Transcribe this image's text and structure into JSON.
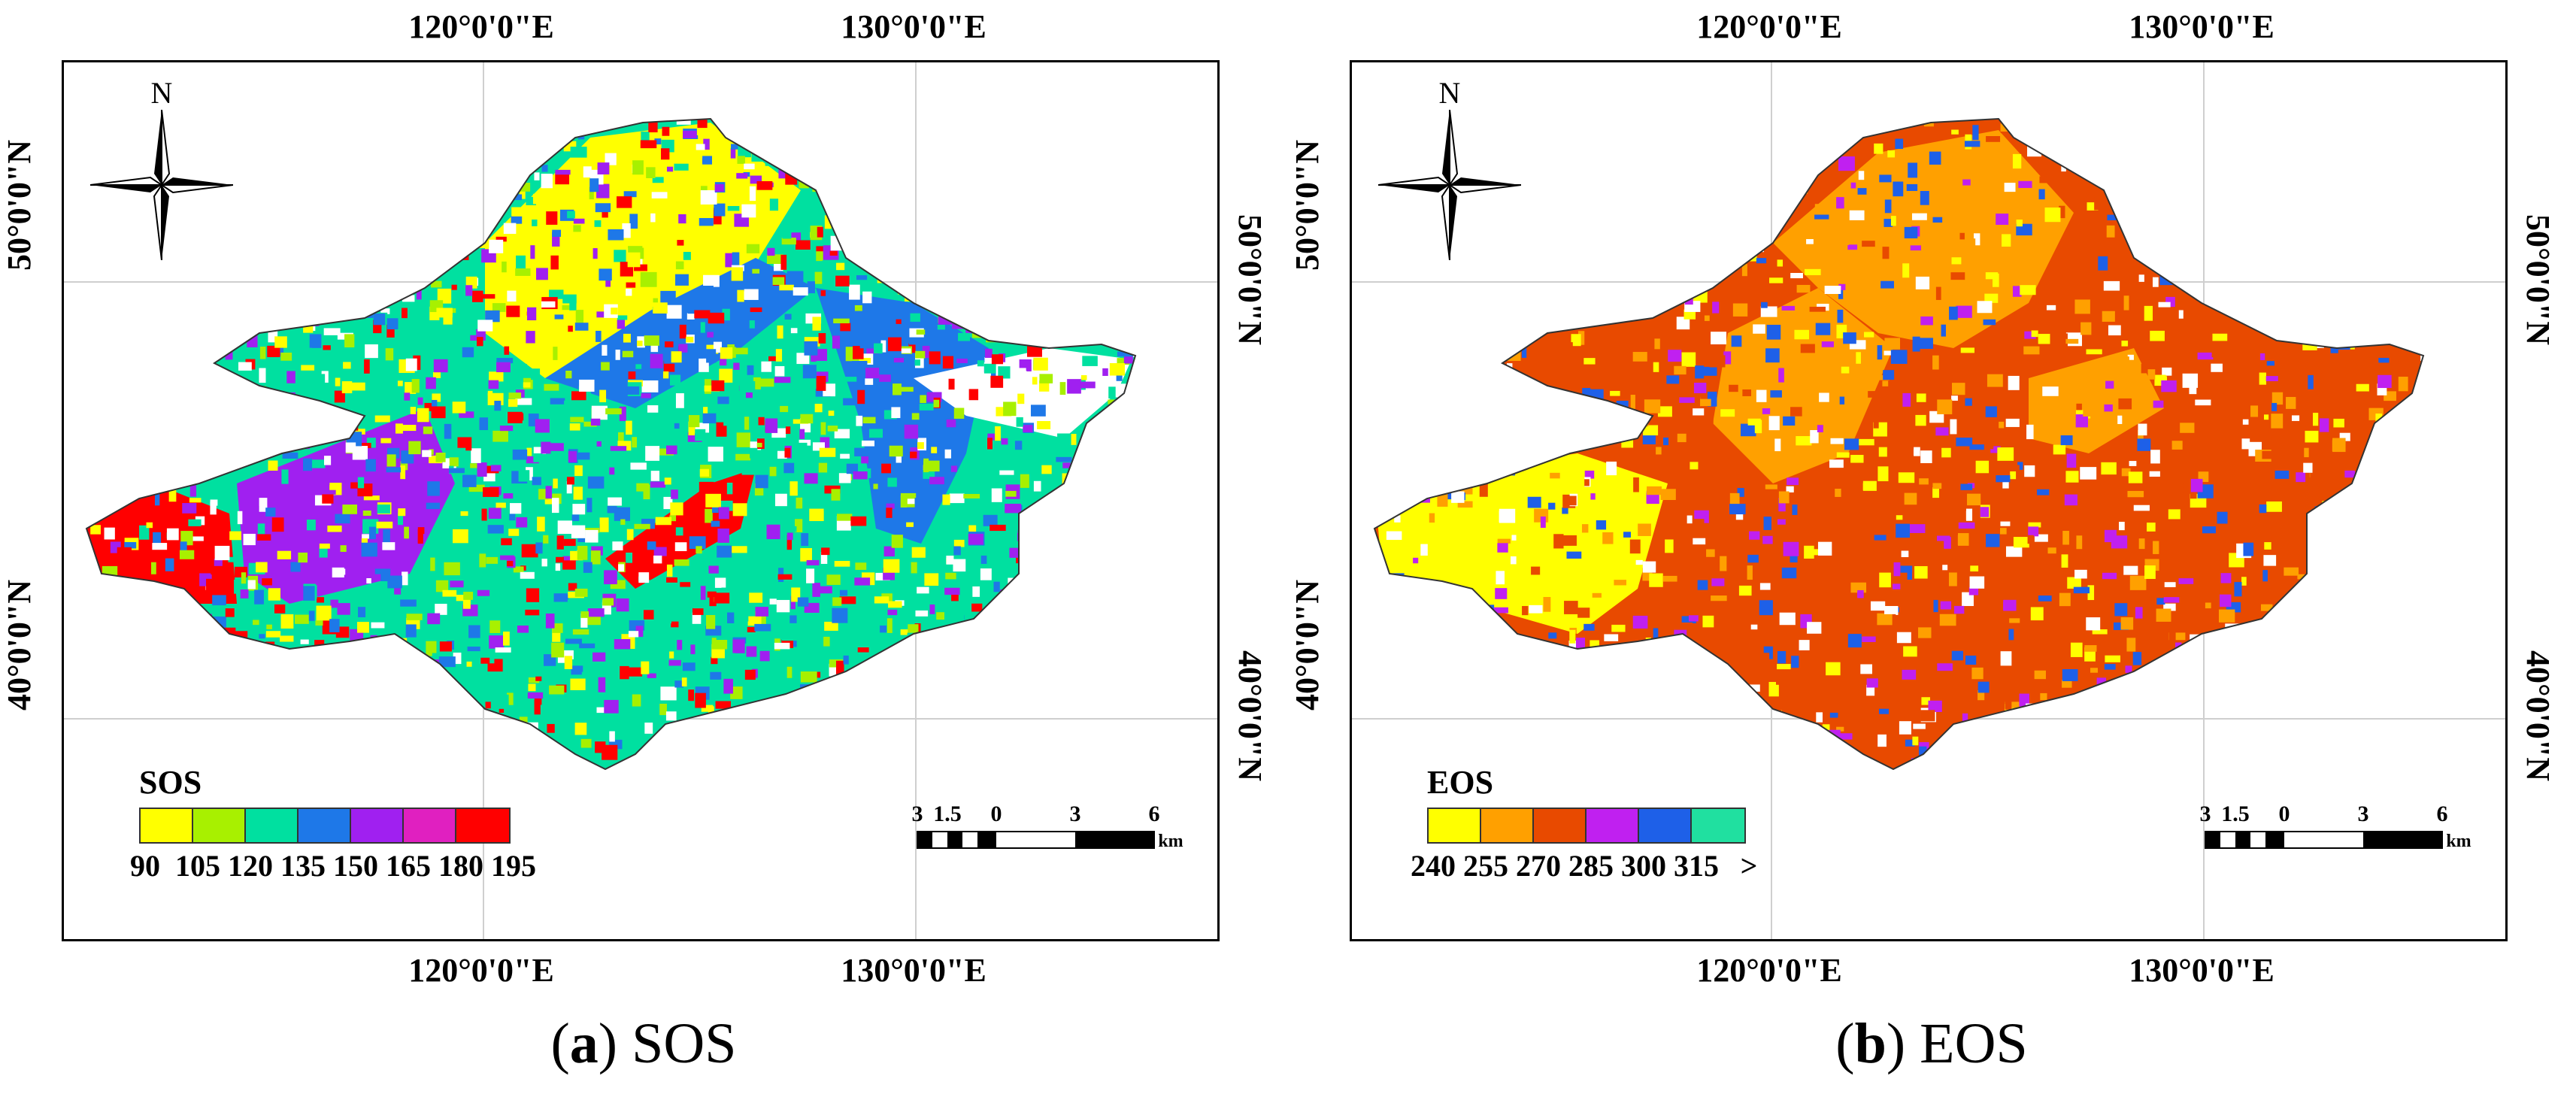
{
  "panels": [
    {
      "id": "a",
      "caption_letter": "a",
      "caption_text": " SOS",
      "axes": {
        "top_ticks": [
          "120°0'0\"E",
          "130°0'0\"E"
        ],
        "bottom_ticks": [
          "120°0'0\"E",
          "130°0'0\"E"
        ],
        "left_ticks": [
          "50°0'0\"N",
          "40°0'0\"N"
        ],
        "right_ticks": [
          "50°0'0\"N",
          "40°0'0\"N"
        ]
      },
      "north_label": "N",
      "legend": {
        "title": "SOS",
        "colors": [
          "#ffff00",
          "#a8f000",
          "#00e0a0",
          "#1e78e8",
          "#a020f0",
          "#e020c0",
          "#ff0000"
        ],
        "labels": [
          "90",
          "105",
          "120",
          "135",
          "150",
          "165",
          "180",
          "195"
        ]
      },
      "scale": {
        "labels": [
          "3",
          "1.5",
          "0",
          "3",
          "6"
        ],
        "unit": "km"
      },
      "map_colors": [
        "#ffff00",
        "#00e0a0",
        "#1e78e8",
        "#a020f0",
        "#ff0000",
        "#a8f000"
      ]
    },
    {
      "id": "b",
      "caption_letter": "b",
      "caption_text": " EOS",
      "axes": {
        "top_ticks": [
          "120°0'0\"E",
          "130°0'0\"E"
        ],
        "bottom_ticks": [
          "120°0'0\"E",
          "130°0'0\"E"
        ],
        "left_ticks": [
          "50°0'0\"N",
          "40°0'0\"N"
        ],
        "right_ticks": [
          "50°0'0\"N",
          "40°0'0\"N"
        ]
      },
      "north_label": "N",
      "legend": {
        "title": "EOS",
        "colors": [
          "#ffff00",
          "#ffa000",
          "#e84a00",
          "#c020f0",
          "#1e60e8",
          "#20e0a0"
        ],
        "labels": [
          "240",
          "255",
          "270",
          "285",
          "300",
          "315",
          ">"
        ]
      },
      "scale": {
        "labels": [
          "3",
          "1.5",
          "0",
          "3",
          "6"
        ],
        "unit": "km"
      },
      "map_colors": [
        "#e84a00",
        "#ffa000",
        "#ffff00",
        "#c020f0",
        "#1e60e8"
      ]
    }
  ]
}
